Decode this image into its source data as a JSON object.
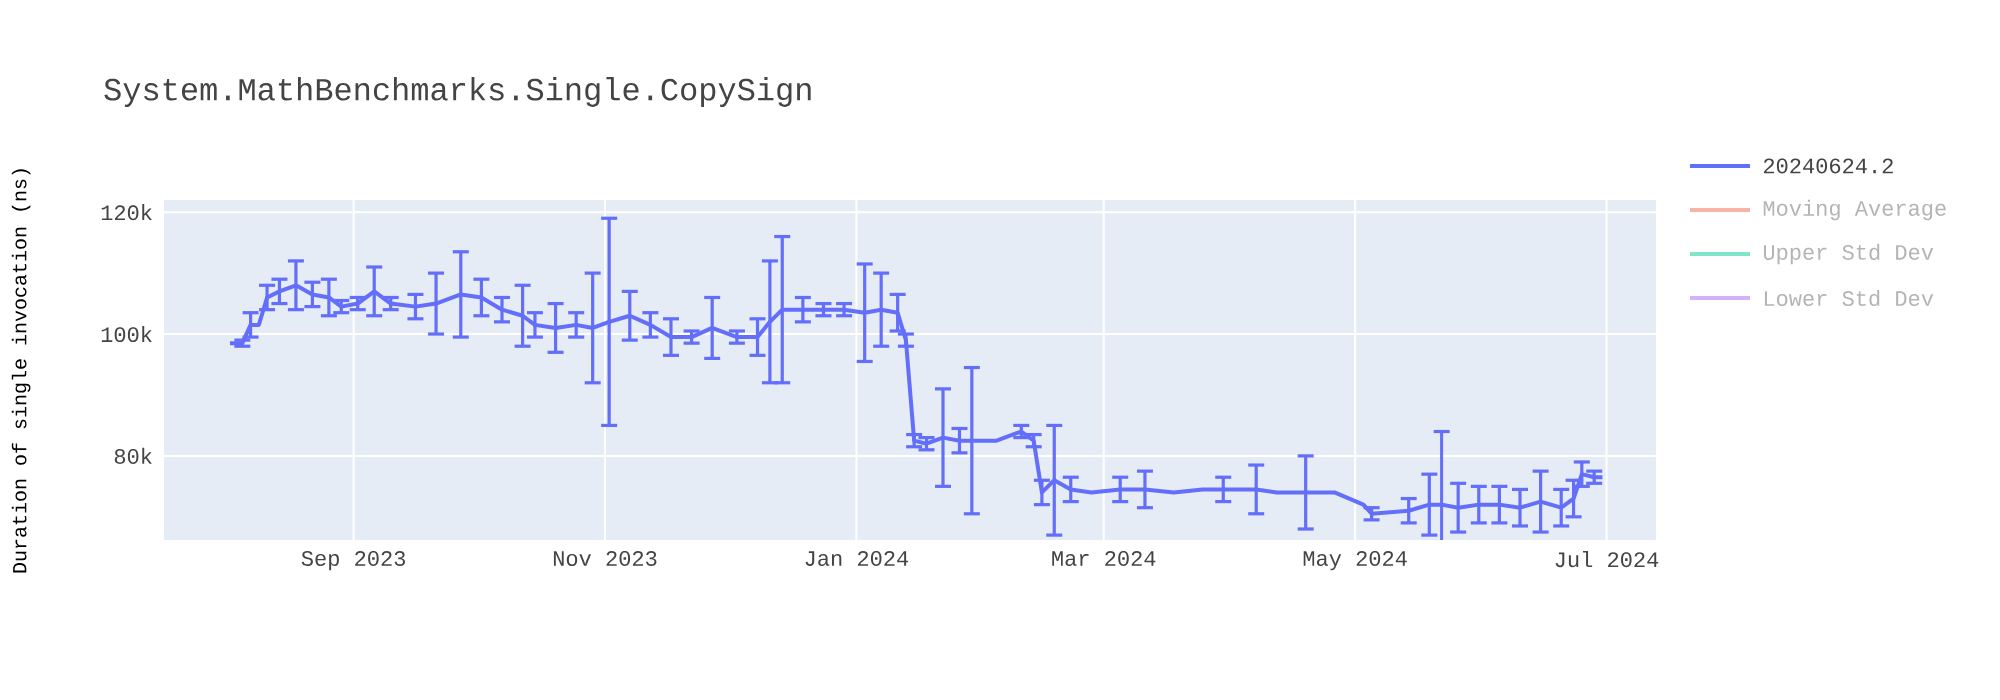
{
  "chart_data": {
    "type": "line",
    "title": "System.MathBenchmarks.Single.CopySign",
    "ylabel": "Duration of single invocation (ns)",
    "x": [
      "2023-08-02",
      "2023-08-05",
      "2023-08-07",
      "2023-08-09",
      "2023-08-11",
      "2023-08-14",
      "2023-08-18",
      "2023-08-22",
      "2023-08-26",
      "2023-08-29",
      "2023-09-02",
      "2023-09-06",
      "2023-09-10",
      "2023-09-16",
      "2023-09-21",
      "2023-09-27",
      "2023-10-02",
      "2023-10-07",
      "2023-10-12",
      "2023-10-15",
      "2023-10-20",
      "2023-10-25",
      "2023-10-29",
      "2023-11-02",
      "2023-11-07",
      "2023-11-12",
      "2023-11-17",
      "2023-11-22",
      "2023-11-27",
      "2023-12-03",
      "2023-12-08",
      "2023-12-11",
      "2023-12-14",
      "2023-12-19",
      "2023-12-24",
      "2023-12-29",
      "2024-01-03",
      "2024-01-07",
      "2024-01-11",
      "2024-01-13",
      "2024-01-15",
      "2024-01-18",
      "2024-01-22",
      "2024-01-26",
      "2024-01-29",
      "2024-02-04",
      "2024-02-10",
      "2024-02-13",
      "2024-02-15",
      "2024-02-18",
      "2024-02-22",
      "2024-02-27",
      "2024-03-05",
      "2024-03-11",
      "2024-03-18",
      "2024-03-25",
      "2024-03-30",
      "2024-04-07",
      "2024-04-12",
      "2024-04-19",
      "2024-04-26",
      "2024-05-03",
      "2024-05-05",
      "2024-05-14",
      "2024-05-19",
      "2024-05-22",
      "2024-05-26",
      "2024-05-31",
      "2024-06-05",
      "2024-06-10",
      "2024-06-15",
      "2024-06-20",
      "2024-06-23",
      "2024-06-25",
      "2024-06-28",
      "2024-06-30"
    ],
    "series": [
      {
        "name": "20240624.2",
        "color": "#636efa",
        "values": [
          98500,
          98500,
          101500,
          101500,
          106000,
          107000,
          108000,
          106500,
          106000,
          104500,
          105000,
          107000,
          105000,
          104500,
          105000,
          106500,
          106000,
          104000,
          103000,
          101500,
          101000,
          101500,
          101000,
          102000,
          103000,
          101500,
          99500,
          99500,
          101000,
          99500,
          99500,
          102000,
          104000,
          104000,
          104000,
          104000,
          103500,
          104000,
          103500,
          99000,
          82500,
          82000,
          83000,
          82500,
          82500,
          82500,
          84000,
          82500,
          74000,
          76000,
          74500,
          74000,
          74500,
          74500,
          74000,
          74500,
          74500,
          74500,
          74000,
          74000,
          74000,
          72000,
          70500,
          71000,
          72000,
          72000,
          71500,
          72000,
          72000,
          71500,
          72500,
          71500,
          73000,
          77000,
          76500,
          76500
        ],
        "errors": [
          null,
          500,
          2000,
          null,
          2000,
          2000,
          4000,
          2000,
          3000,
          1000,
          1000,
          4000,
          1000,
          2000,
          5000,
          7000,
          3000,
          2000,
          5000,
          2000,
          4000,
          2000,
          9000,
          17000,
          4000,
          2000,
          3000,
          1000,
          5000,
          1000,
          3000,
          10000,
          12000,
          2000,
          1000,
          1000,
          8000,
          6000,
          3000,
          1000,
          1000,
          1000,
          8000,
          2000,
          12000,
          null,
          1000,
          1000,
          2000,
          9000,
          2000,
          null,
          2000,
          3000,
          null,
          null,
          2000,
          4000,
          null,
          6000,
          null,
          null,
          1000,
          2000,
          5000,
          12000,
          4000,
          3000,
          3000,
          3000,
          5000,
          3000,
          3000,
          2000,
          1000,
          null
        ]
      },
      {
        "name": "Moving Average",
        "color": "#f7b3a6",
        "values": [
          null,
          null,
          null,
          null,
          null,
          null,
          null,
          null,
          null,
          null,
          null,
          null,
          null,
          null,
          null,
          null,
          null,
          null,
          null,
          null,
          null,
          null,
          null,
          null,
          null,
          null,
          null,
          null,
          null,
          null,
          null,
          null,
          null,
          null,
          null,
          null,
          null,
          null,
          null,
          null,
          null,
          null,
          null,
          null,
          null,
          null,
          null,
          null,
          null,
          null,
          null,
          null,
          null,
          null,
          null,
          null,
          null,
          null,
          null,
          null,
          null,
          null,
          null,
          null,
          null,
          null,
          null,
          null,
          null,
          null,
          null,
          null,
          null,
          null,
          null,
          null
        ]
      },
      {
        "name": "Upper Std Dev",
        "color": "#80e5cb",
        "values": [
          null,
          null,
          null,
          null,
          null,
          null,
          null,
          null,
          null,
          null,
          null,
          null,
          null,
          null,
          null,
          null,
          null,
          null,
          null,
          null,
          null,
          null,
          null,
          null,
          null,
          null,
          null,
          null,
          null,
          null,
          null,
          null,
          null,
          null,
          null,
          null,
          null,
          null,
          null,
          null,
          null,
          null,
          null,
          null,
          null,
          null,
          null,
          null,
          null,
          null,
          null,
          null,
          null,
          null,
          null,
          null,
          null,
          null,
          null,
          null,
          null,
          null,
          null,
          null,
          null,
          null,
          null,
          null,
          null,
          null,
          null,
          null,
          null,
          null,
          null,
          null
        ]
      },
      {
        "name": "Lower Std Dev",
        "color": "#d5b1fd",
        "values": [
          null,
          null,
          null,
          null,
          null,
          null,
          null,
          null,
          null,
          null,
          null,
          null,
          null,
          null,
          null,
          null,
          null,
          null,
          null,
          null,
          null,
          null,
          null,
          null,
          null,
          null,
          null,
          null,
          null,
          null,
          null,
          null,
          null,
          null,
          null,
          null,
          null,
          null,
          null,
          null,
          null,
          null,
          null,
          null,
          null,
          null,
          null,
          null,
          null,
          null,
          null,
          null,
          null,
          null,
          null,
          null,
          null,
          null,
          null,
          null,
          null,
          null,
          null,
          null,
          null,
          null,
          null,
          null,
          null,
          null,
          null,
          null,
          null,
          null,
          null,
          null
        ]
      }
    ],
    "xlim": [
      "2023-07-17",
      "2024-07-13"
    ],
    "xticks": [
      {
        "value": "2023-09-01",
        "label": "Sep 2023"
      },
      {
        "value": "2023-11-01",
        "label": "Nov 2023"
      },
      {
        "value": "2024-01-01",
        "label": "Jan 2024"
      },
      {
        "value": "2024-03-01",
        "label": "Mar 2024"
      },
      {
        "value": "2024-05-01",
        "label": "May 2024"
      },
      {
        "value": "2024-07-01",
        "label": "Jul 2024"
      }
    ],
    "ylim": [
      66200,
      122000
    ],
    "yticks": [
      {
        "value": 80000,
        "label": "80k"
      },
      {
        "value": 100000,
        "label": "100k"
      },
      {
        "value": 120000,
        "label": "120k"
      }
    ],
    "grid": true,
    "legend": "top right",
    "marker": "none",
    "line_style": "solid"
  }
}
